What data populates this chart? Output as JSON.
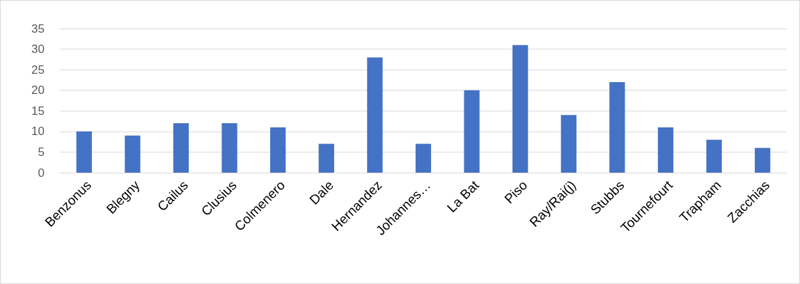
{
  "chart_data": {
    "type": "bar",
    "categories": [
      "Benzonus",
      "Blegny",
      "Cailus",
      "Clusius",
      "Colmenero",
      "Dale",
      "Hernandez",
      "Johannes…",
      "La Bat",
      "Piso",
      "Ray/Rai(j)",
      "Stubbs",
      "Tournefourt",
      "Trapham",
      "Zacchias"
    ],
    "values": [
      10,
      9,
      12,
      12,
      11,
      7,
      28,
      7,
      20,
      31,
      14,
      22,
      11,
      8,
      6
    ],
    "color": "#4472c4",
    "ylim": [
      0,
      35
    ],
    "yticks": [
      0,
      5,
      10,
      15,
      20,
      25,
      30,
      35
    ],
    "grid": "y"
  }
}
